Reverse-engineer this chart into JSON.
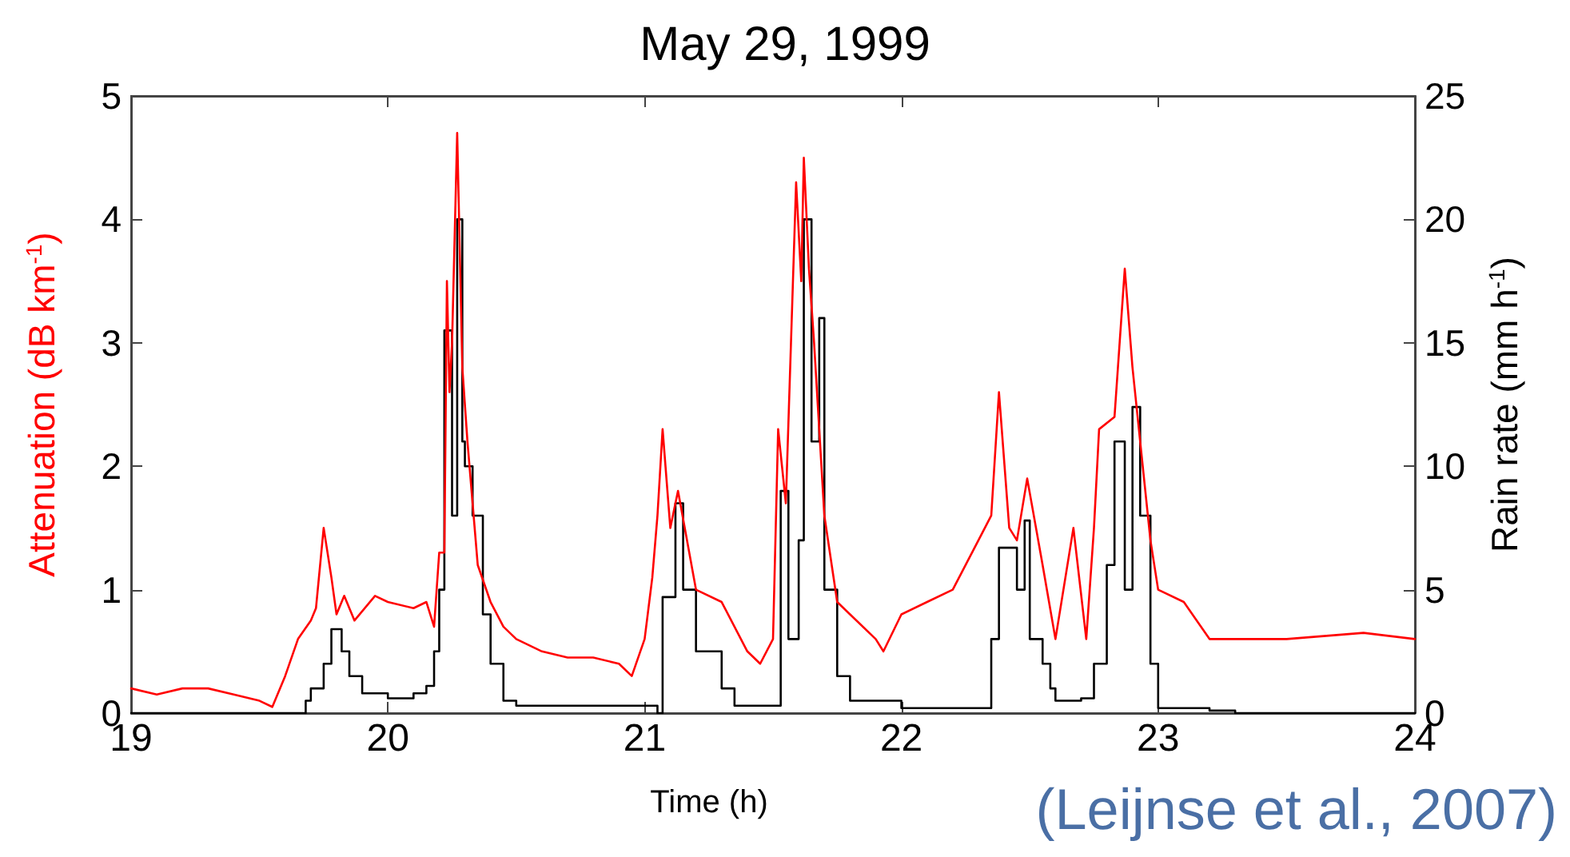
{
  "chart_data": {
    "type": "line",
    "title": "May 29, 1999",
    "xlabel": "Time (h)",
    "ylabel": "Attenuation (dB km$^{-1}$)",
    "y2label": "Rain rate (mm h$^{-1}$)",
    "annotations": [
      "(Leijnse et al., 2007)"
    ],
    "xlim": [
      19,
      24
    ],
    "xticks": [
      19,
      20,
      21,
      22,
      23,
      24
    ],
    "ylim": [
      0,
      5
    ],
    "yticks": [
      0,
      1,
      2,
      3,
      4,
      5
    ],
    "y2lim": [
      0,
      25
    ],
    "y2ticks": [
      0,
      5,
      10,
      15,
      20,
      25
    ],
    "grid": false,
    "marker": "none",
    "line_style": "solid",
    "series": [
      {
        "color": "#ff0000",
        "x": [
          19.0,
          19.1,
          19.2,
          19.3,
          19.4,
          19.5,
          19.55,
          19.6,
          19.65,
          19.7,
          19.72,
          19.75,
          19.78,
          19.8,
          19.83,
          19.87,
          19.95,
          20.0,
          20.1,
          20.15,
          20.18,
          20.2,
          20.22,
          20.23,
          20.24,
          20.25,
          20.27,
          20.29,
          20.31,
          20.35,
          20.4,
          20.45,
          20.5,
          20.6,
          20.7,
          20.8,
          20.9,
          20.95,
          21.0,
          21.03,
          21.05,
          21.07,
          21.1,
          21.13,
          21.2,
          21.3,
          21.4,
          21.45,
          21.5,
          21.52,
          21.55,
          21.57,
          21.59,
          21.61,
          21.62,
          21.64,
          21.66,
          21.7,
          21.75,
          21.8,
          21.9,
          21.93,
          22.0,
          22.1,
          22.2,
          22.3,
          22.35,
          22.38,
          22.42,
          22.45,
          22.49,
          22.55,
          22.6,
          22.67,
          22.72,
          22.75,
          22.77,
          22.83,
          22.87,
          22.9,
          22.93,
          22.97,
          23.0,
          23.1,
          23.2,
          23.3,
          23.5,
          23.8,
          24.0
        ],
        "values": [
          0.2,
          0.15,
          0.2,
          0.2,
          0.15,
          0.1,
          0.05,
          0.3,
          0.6,
          0.75,
          0.85,
          1.5,
          1.1,
          0.8,
          0.95,
          0.75,
          0.95,
          0.9,
          0.85,
          0.9,
          0.7,
          1.3,
          1.3,
          3.5,
          2.6,
          3.0,
          4.7,
          2.8,
          2.2,
          1.2,
          0.9,
          0.7,
          0.6,
          0.5,
          0.45,
          0.45,
          0.4,
          0.3,
          0.6,
          1.1,
          1.6,
          2.3,
          1.5,
          1.8,
          1.0,
          0.9,
          0.5,
          0.4,
          0.6,
          2.3,
          1.7,
          3.0,
          4.3,
          3.5,
          4.5,
          3.6,
          3.0,
          1.6,
          0.9,
          0.8,
          0.6,
          0.5,
          0.8,
          0.9,
          1.0,
          1.4,
          1.6,
          2.6,
          1.5,
          1.4,
          1.9,
          1.2,
          0.6,
          1.5,
          0.6,
          1.5,
          2.3,
          2.4,
          3.6,
          2.8,
          2.2,
          1.4,
          1.0,
          0.9,
          0.6,
          0.6,
          0.6,
          0.65,
          0.6
        ]
      },
      {
        "type": "step",
        "axis": "y2",
        "color": "#000000",
        "x": [
          19.0,
          19.65,
          19.68,
          19.7,
          19.75,
          19.78,
          19.82,
          19.85,
          19.9,
          20.0,
          20.1,
          20.15,
          20.18,
          20.2,
          20.22,
          20.25,
          20.27,
          20.29,
          20.3,
          20.33,
          20.37,
          20.4,
          20.45,
          20.5,
          21.0,
          21.05,
          21.07,
          21.12,
          21.15,
          21.2,
          21.3,
          21.35,
          21.5,
          21.53,
          21.56,
          21.6,
          21.62,
          21.65,
          21.68,
          21.7,
          21.75,
          21.8,
          22.0,
          22.3,
          22.35,
          22.38,
          22.45,
          22.48,
          22.5,
          22.55,
          22.58,
          22.6,
          22.7,
          22.75,
          22.8,
          22.83,
          22.87,
          22.9,
          22.93,
          22.97,
          23.0,
          23.2,
          23.3,
          24.0
        ],
        "values": [
          0,
          0,
          0.5,
          1,
          2,
          3.4,
          2.5,
          1.5,
          0.8,
          0.6,
          0.8,
          1.1,
          2.5,
          5,
          15.5,
          8,
          20,
          11,
          10,
          8,
          4,
          2,
          0.5,
          0.3,
          0.3,
          0,
          4.7,
          8.5,
          5,
          2.5,
          1.0,
          0.3,
          0.3,
          9,
          3,
          7,
          20,
          11,
          16,
          5,
          1.5,
          0.5,
          0.2,
          0.2,
          3,
          6.7,
          5,
          7.8,
          3,
          2,
          1,
          0.5,
          0.6,
          2,
          6,
          11,
          5,
          12.4,
          8,
          2,
          0.2,
          0.1,
          0,
          0
        ]
      }
    ]
  }
}
